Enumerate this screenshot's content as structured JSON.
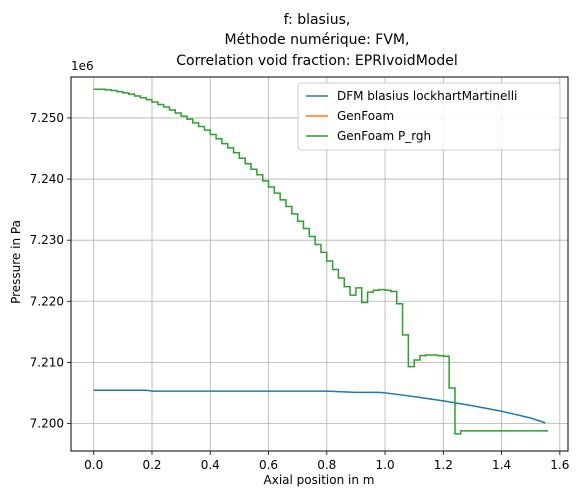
{
  "chart_data": {
    "type": "line",
    "title_lines": [
      "f: blasius,",
      "Méthode numérique: FVM,",
      "Correlation void fraction: EPRIvoidModel"
    ],
    "xlabel": "Axial position in m",
    "ylabel": "Pressure in Pa",
    "y_offset_label": "1e6",
    "xlim": [
      -0.078,
      1.628
    ],
    "ylim": [
      7.1955,
      7.2567
    ],
    "x_ticks": [
      0.0,
      0.2,
      0.4,
      0.6,
      0.8,
      1.0,
      1.2,
      1.4,
      1.6
    ],
    "x_tick_labels": [
      "0.0",
      "0.2",
      "0.4",
      "0.6",
      "0.8",
      "1.0",
      "1.2",
      "1.4",
      "1.6"
    ],
    "y_ticks": [
      7.2,
      7.21,
      7.22,
      7.23,
      7.24,
      7.25
    ],
    "y_tick_labels": [
      "7.200",
      "7.210",
      "7.220",
      "7.230",
      "7.240",
      "7.250"
    ],
    "y_unit_scale": 1000000,
    "grid": true,
    "legend_position": "top-right",
    "legend": [
      "DFM blasius lockhartMartinelli",
      "GenFoam",
      "GenFoam P_rgh"
    ],
    "series": [
      {
        "name": "DFM blasius lockhartMartinelli",
        "color": "#1f77b4",
        "step": false,
        "x": [
          0.0,
          0.18,
          0.2,
          0.4,
          0.6,
          0.8,
          0.85,
          0.9,
          0.98,
          1.02,
          1.1,
          1.2,
          1.3,
          1.4,
          1.5,
          1.55
        ],
        "y": [
          7.20545,
          7.20545,
          7.2053,
          7.2053,
          7.2053,
          7.2053,
          7.2052,
          7.2051,
          7.2051,
          7.2049,
          7.2044,
          7.2037,
          7.2029,
          7.202,
          7.2009,
          7.2001
        ]
      },
      {
        "name": "GenFoam",
        "color": "#ff7f0e",
        "step": true,
        "x": [],
        "y": []
      },
      {
        "name": "GenFoam P_rgh",
        "color": "#2ca02c",
        "step": true,
        "x": [
          0.0,
          0.02,
          0.04,
          0.06,
          0.08,
          0.1,
          0.12,
          0.14,
          0.16,
          0.18,
          0.2,
          0.22,
          0.24,
          0.26,
          0.28,
          0.3,
          0.32,
          0.34,
          0.36,
          0.38,
          0.4,
          0.42,
          0.44,
          0.46,
          0.48,
          0.5,
          0.52,
          0.54,
          0.56,
          0.58,
          0.6,
          0.62,
          0.64,
          0.66,
          0.68,
          0.7,
          0.72,
          0.74,
          0.76,
          0.78,
          0.8,
          0.82,
          0.84,
          0.86,
          0.88,
          0.9,
          0.92,
          0.94,
          0.96,
          0.98,
          1.0,
          1.02,
          1.04,
          1.06,
          1.08,
          1.1,
          1.12,
          1.14,
          1.16,
          1.18,
          1.2,
          1.22,
          1.24,
          1.26,
          1.28,
          1.3,
          1.32,
          1.34,
          1.36,
          1.38,
          1.4,
          1.42,
          1.44,
          1.46,
          1.48,
          1.5,
          1.52,
          1.54,
          1.56
        ],
        "y": [
          7.2547,
          7.2547,
          7.2546,
          7.2545,
          7.2543,
          7.2541,
          7.2539,
          7.2536,
          7.2533,
          7.253,
          7.2526,
          7.2522,
          7.2518,
          7.2513,
          7.2508,
          7.2503,
          7.2498,
          7.2492,
          7.2486,
          7.248,
          7.2473,
          7.2466,
          7.2458,
          7.2451,
          7.2443,
          7.2434,
          7.2425,
          7.2416,
          7.2407,
          7.2397,
          7.2387,
          7.2377,
          7.2366,
          7.2355,
          7.2343,
          7.2331,
          7.2319,
          7.2306,
          7.2293,
          7.228,
          7.2266,
          7.2252,
          7.2238,
          7.2224,
          7.221,
          7.2222,
          7.2198,
          7.2215,
          7.2218,
          7.2219,
          7.2218,
          7.2216,
          7.2196,
          7.2145,
          7.2093,
          7.2104,
          7.2111,
          7.2112,
          7.2112,
          7.2111,
          7.211,
          7.2058,
          7.1983,
          7.1988,
          7.1988,
          7.1988,
          7.1988,
          7.1988,
          7.1988,
          7.1988,
          7.1988,
          7.1988,
          7.1988,
          7.1988,
          7.1988,
          7.1988,
          7.1988,
          7.1988,
          7.1988
        ]
      }
    ]
  }
}
